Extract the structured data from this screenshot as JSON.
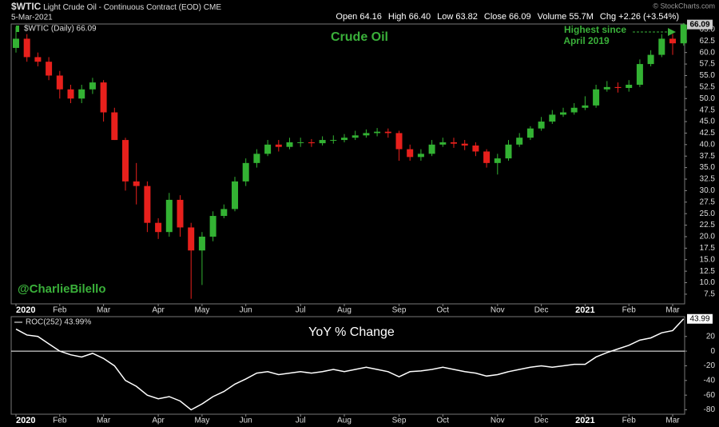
{
  "header": {
    "symbol": "$WTIC",
    "name": "Light Crude Oil - Continuous Contract (EOD)",
    "exchange": "CME",
    "date": "5-Mar-2021",
    "quote": [
      "Open 64.16",
      "High 66.40",
      "Low 63.82",
      "Close 66.09",
      "Volume 55.7M",
      "Chg +2.26 (+3.54%)"
    ],
    "credit": "© StockCharts.com"
  },
  "chart_data": [
    {
      "type": "candlestick",
      "title": "Crude Oil",
      "legend": "$WTIC (Daily) 66.09",
      "annotation": [
        "Highest since",
        "April 2019"
      ],
      "watermark": "@CharlieBilello",
      "up_color": "#33b233",
      "down_color": "#e8201c",
      "categories": [
        "2020",
        null,
        null,
        null,
        "Feb",
        null,
        null,
        null,
        "Mar",
        null,
        null,
        null,
        null,
        "Apr",
        null,
        null,
        null,
        "May",
        null,
        null,
        null,
        "Jun",
        null,
        null,
        null,
        null,
        "Jul",
        null,
        null,
        null,
        "Aug",
        null,
        null,
        null,
        null,
        "Sep",
        null,
        null,
        null,
        "Oct",
        null,
        null,
        null,
        null,
        "Nov",
        null,
        null,
        null,
        "Dec",
        null,
        null,
        null,
        "2021",
        null,
        null,
        null,
        "Feb",
        null,
        null,
        null,
        "Mar",
        null
      ],
      "open": [
        61,
        63,
        59,
        58,
        55,
        52,
        50,
        52,
        53.5,
        47,
        41,
        32,
        31,
        23,
        21,
        28,
        22,
        17,
        20,
        24.5,
        26,
        32,
        36,
        38,
        40,
        39.5,
        40.5,
        40.5,
        40.3,
        41,
        41,
        41.5,
        42,
        42.5,
        42.8,
        42.5,
        39,
        37.3,
        38,
        40,
        40.5,
        40.2,
        39.8,
        38.5,
        36,
        37,
        40,
        41.5,
        43.5,
        45,
        46.5,
        47,
        48,
        48.5,
        52,
        52.5,
        52.3,
        53,
        57.5,
        59.5,
        63,
        62
      ],
      "high": [
        65.6,
        64,
        60,
        59,
        56,
        53,
        53,
        54.5,
        54,
        48,
        41.5,
        36,
        32,
        24,
        29.5,
        29,
        23,
        21,
        25.5,
        27,
        33,
        37,
        39,
        41,
        41,
        41.5,
        41.5,
        41.2,
        41.8,
        42,
        42.3,
        43,
        43.3,
        43.6,
        43.5,
        43,
        40,
        39,
        41,
        41.5,
        41.5,
        41,
        40.5,
        39,
        38,
        41,
        42.5,
        44,
        46,
        47.5,
        48,
        49,
        50.5,
        53,
        53.8,
        53.5,
        54,
        58.5,
        60.5,
        64,
        64,
        66.4
      ],
      "low": [
        60,
        58,
        57,
        54,
        50,
        49,
        49,
        51,
        45,
        41,
        30,
        27,
        21,
        19.5,
        20,
        20,
        6.5,
        9.5,
        19,
        24,
        25.5,
        31,
        35,
        37.5,
        38.5,
        39,
        39.5,
        39.5,
        39.8,
        40.2,
        40.5,
        41,
        41.5,
        41.8,
        41.5,
        36.5,
        36.5,
        36.5,
        37.5,
        39.5,
        39.3,
        38.8,
        37.5,
        35,
        33.5,
        36.5,
        39.5,
        41,
        43,
        44.5,
        46,
        46.5,
        47.5,
        48,
        51.5,
        51.3,
        51.5,
        52.5,
        57,
        59,
        59.5,
        61.5
      ],
      "close": [
        63,
        59,
        58,
        55,
        52,
        50,
        52,
        53.5,
        47,
        41,
        32,
        31,
        23,
        21,
        28,
        22,
        17,
        20,
        24.5,
        26,
        32,
        36,
        38,
        40,
        39.5,
        40.5,
        40.5,
        40.3,
        41,
        41,
        41.5,
        42,
        42.5,
        42.8,
        42.5,
        39,
        37.3,
        38,
        40,
        40.5,
        40.2,
        39.8,
        38.5,
        36,
        37,
        40,
        41.5,
        43.5,
        45,
        46.5,
        47,
        48,
        48.5,
        52,
        52.5,
        52.3,
        53,
        57.5,
        59.5,
        63,
        62,
        66.09
      ],
      "ylim": [
        5.4,
        66.2
      ],
      "yticks": [
        7.5,
        {
          "value": 10,
          "label": "10.0"
        },
        12.5,
        {
          "value": 15,
          "label": "15.0"
        },
        17.5,
        {
          "value": 20,
          "label": "20.0"
        },
        22.5,
        {
          "value": 25,
          "label": "25.0"
        },
        27.5,
        {
          "value": 30,
          "label": "30.0"
        },
        32.5,
        {
          "value": 35,
          "label": "35.0"
        },
        37.5,
        {
          "value": 40,
          "label": "40.0"
        },
        42.5,
        {
          "value": 45,
          "label": "45.0"
        },
        47.5,
        {
          "value": 50,
          "label": "50.0"
        },
        52.5,
        {
          "value": 55,
          "label": "55.0"
        },
        57.5,
        {
          "value": 60,
          "label": "60.0"
        },
        62.5,
        {
          "value": 65,
          "label": "65.0"
        }
      ]
    },
    {
      "type": "line",
      "title": "YoY % Change",
      "legend": "ROC(252) 43.99%",
      "color": "#ffffff",
      "categories": [
        "2020",
        null,
        null,
        null,
        "Feb",
        null,
        null,
        null,
        "Mar",
        null,
        null,
        null,
        null,
        "Apr",
        null,
        null,
        null,
        "May",
        null,
        null,
        null,
        "Jun",
        null,
        null,
        null,
        null,
        "Jul",
        null,
        null,
        null,
        "Aug",
        null,
        null,
        null,
        null,
        "Sep",
        null,
        null,
        null,
        "Oct",
        null,
        null,
        null,
        null,
        "Nov",
        null,
        null,
        null,
        "Dec",
        null,
        null,
        null,
        "2021",
        null,
        null,
        null,
        "Feb",
        null,
        null,
        null,
        "Mar",
        null
      ],
      "values": [
        30,
        22,
        20,
        10,
        0,
        -5,
        -8,
        -3,
        -10,
        -20,
        -40,
        -48,
        -60,
        -65,
        -62,
        -68,
        -80,
        -72,
        -62,
        -55,
        -45,
        -38,
        -30,
        -28,
        -32,
        -30,
        -28,
        -30,
        -28,
        -25,
        -28,
        -25,
        -22,
        -25,
        -28,
        -35,
        -28,
        -27,
        -25,
        -22,
        -25,
        -28,
        -30,
        -34,
        -32,
        -28,
        -25,
        -22,
        -20,
        -22,
        -20,
        -18,
        -18,
        -8,
        -2,
        3,
        8,
        15,
        18,
        25,
        28,
        43.99
      ],
      "ylim": [
        -86,
        47
      ],
      "yticks": [
        -80,
        -60,
        -40,
        -20,
        0,
        20
      ]
    }
  ]
}
